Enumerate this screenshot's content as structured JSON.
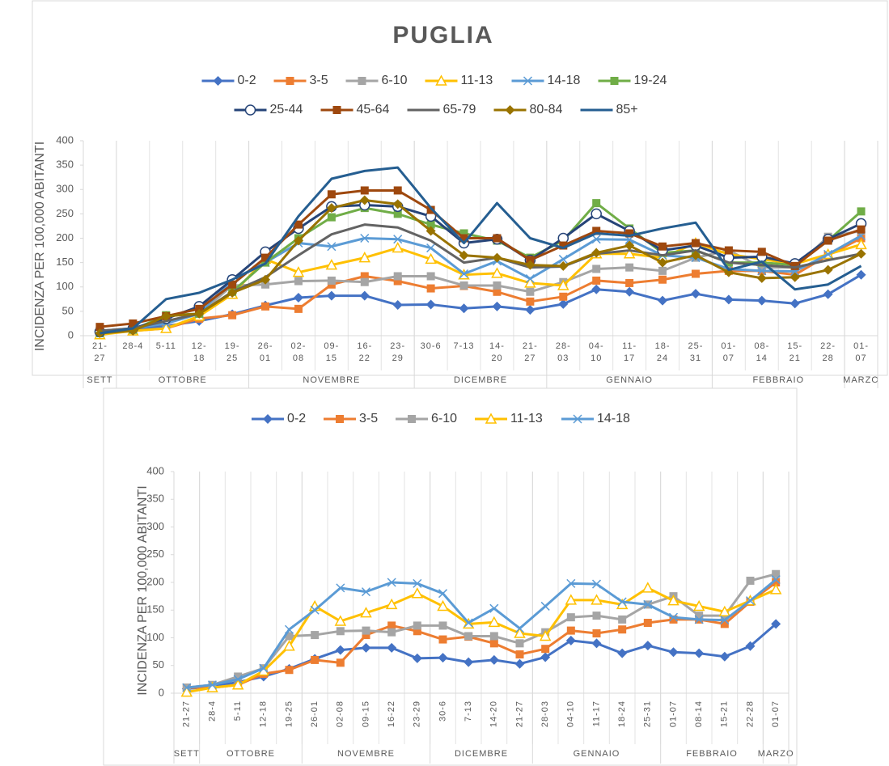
{
  "chart_data": [
    {
      "type": "line",
      "title": "PUGLIA",
      "y_label": "INCIDENZA PER 100,000 ABITANTI",
      "categories": [
        "21-27",
        "28-4",
        "5-11",
        "12-18",
        "19-25",
        "26-01",
        "02-08",
        "09-15",
        "16-22",
        "23-29",
        "30-6",
        "7-13",
        "14-20",
        "21-27",
        "28-03",
        "04-10",
        "11-17",
        "18-24",
        "25-31",
        "01-07",
        "08-14",
        "15-21",
        "22-28",
        "01-07"
      ],
      "groups": [
        {
          "label": "SETT",
          "count": 1
        },
        {
          "label": "OTTOBRE",
          "count": 4
        },
        {
          "label": "NOVEMBRE",
          "count": 5
        },
        {
          "label": "DICEMBRE",
          "count": 4
        },
        {
          "label": "GENNAIO",
          "count": 5
        },
        {
          "label": "FEBBRAIO",
          "count": 4
        },
        {
          "label": "MARZO",
          "count": 1
        }
      ],
      "ylim": [
        0,
        400
      ],
      "yticks": [
        0,
        50,
        100,
        150,
        200,
        250,
        300,
        350,
        400
      ],
      "series": [
        {
          "name": "0-2",
          "color": "#4472c4",
          "marker": "diamond",
          "values": [
            8,
            12,
            20,
            30,
            44,
            62,
            78,
            82,
            82,
            63,
            64,
            56,
            60,
            53,
            65,
            95,
            90,
            72,
            86,
            74,
            72,
            66,
            85,
            125
          ]
        },
        {
          "name": "3-5",
          "color": "#ed7d31",
          "marker": "square",
          "values": [
            10,
            10,
            15,
            35,
            42,
            60,
            55,
            105,
            122,
            112,
            97,
            102,
            90,
            70,
            80,
            113,
            108,
            115,
            127,
            133,
            133,
            125,
            165,
            200
          ]
        },
        {
          "name": "6-10",
          "color": "#a5a5a5",
          "marker": "square",
          "values": [
            10,
            15,
            30,
            45,
            103,
            105,
            112,
            113,
            110,
            122,
            122,
            103,
            103,
            90,
            110,
            137,
            140,
            133,
            160,
            175,
            140,
            140,
            203,
            215
          ]
        },
        {
          "name": "11-13",
          "color": "#ffc000",
          "marker": "triangle",
          "values": [
            2,
            10,
            15,
            40,
            85,
            157,
            130,
            145,
            160,
            180,
            157,
            125,
            128,
            108,
            103,
            168,
            168,
            160,
            190,
            167,
            157,
            147,
            167,
            187
          ]
        },
        {
          "name": "14-18",
          "color": "#5b9bd5",
          "marker": "x",
          "values": [
            10,
            15,
            25,
            45,
            115,
            150,
            190,
            183,
            200,
            198,
            180,
            127,
            153,
            117,
            157,
            198,
            197,
            165,
            160,
            137,
            133,
            132,
            167,
            205
          ]
        },
        {
          "name": "19-24",
          "color": "#70ad47",
          "marker": "square",
          "values": [
            5,
            12,
            42,
            45,
            90,
            150,
            200,
            243,
            262,
            250,
            228,
            210,
            195,
            160,
            195,
            272,
            220,
            170,
            175,
            150,
            150,
            145,
            195,
            255
          ]
        },
        {
          "name": "25-44",
          "color": "#264478",
          "marker": "circle",
          "values": [
            8,
            15,
            35,
            60,
            115,
            172,
            220,
            265,
            268,
            265,
            245,
            190,
            198,
            155,
            200,
            250,
            215,
            175,
            185,
            160,
            162,
            148,
            198,
            230
          ]
        },
        {
          "name": "45-64",
          "color": "#9e480e",
          "marker": "square",
          "values": [
            18,
            25,
            40,
            55,
            105,
            160,
            228,
            290,
            298,
            298,
            258,
            200,
            200,
            155,
            185,
            215,
            210,
            183,
            190,
            175,
            172,
            143,
            195,
            218
          ]
        },
        {
          "name": "65-79",
          "color": "#636363",
          "marker": "none",
          "values": [
            10,
            15,
            30,
            45,
            90,
            120,
            165,
            208,
            228,
            222,
            195,
            150,
            160,
            140,
            142,
            168,
            175,
            165,
            175,
            150,
            145,
            140,
            155,
            168
          ]
        },
        {
          "name": "80-84",
          "color": "#997300",
          "marker": "diamond",
          "values": [
            5,
            10,
            40,
            45,
            88,
            115,
            195,
            262,
            278,
            270,
            215,
            165,
            160,
            145,
            143,
            170,
            185,
            150,
            165,
            130,
            118,
            120,
            135,
            168
          ]
        },
        {
          "name": "85+",
          "color": "#255e91",
          "marker": "none",
          "values": [
            5,
            15,
            75,
            88,
            115,
            148,
            245,
            322,
            338,
            345,
            262,
            190,
            272,
            200,
            180,
            210,
            205,
            220,
            232,
            135,
            152,
            95,
            105,
            143
          ]
        }
      ]
    },
    {
      "type": "line",
      "y_label": "INCIDENZA PER 100,000 ABITANTI",
      "categories": [
        "21-27",
        "28-4",
        "5-11",
        "12-18",
        "19-25",
        "26-01",
        "02-08",
        "09-15",
        "16-22",
        "23-29",
        "30-6",
        "7-13",
        "14-20",
        "21-27",
        "28-03",
        "04-10",
        "11-17",
        "18-24",
        "25-31",
        "01-07",
        "08-14",
        "15-21",
        "22-28",
        "01-07"
      ],
      "groups": [
        {
          "label": "SETT",
          "count": 1
        },
        {
          "label": "OTTOBRE",
          "count": 4
        },
        {
          "label": "NOVEMBRE",
          "count": 5
        },
        {
          "label": "DICEMBRE",
          "count": 4
        },
        {
          "label": "GENNAIO",
          "count": 5
        },
        {
          "label": "FEBBRAIO",
          "count": 4
        },
        {
          "label": "MARZO",
          "count": 1
        }
      ],
      "ylim": [
        0,
        400
      ],
      "yticks": [
        0,
        50,
        100,
        150,
        200,
        250,
        300,
        350,
        400
      ],
      "series": [
        {
          "name": "0-2",
          "color": "#4472c4",
          "marker": "diamond",
          "values": [
            8,
            12,
            20,
            30,
            44,
            62,
            78,
            82,
            82,
            63,
            64,
            56,
            60,
            53,
            65,
            95,
            90,
            72,
            86,
            74,
            72,
            66,
            85,
            125
          ]
        },
        {
          "name": "3-5",
          "color": "#ed7d31",
          "marker": "square",
          "values": [
            10,
            10,
            15,
            35,
            42,
            60,
            55,
            105,
            122,
            112,
            97,
            102,
            90,
            70,
            80,
            113,
            108,
            115,
            127,
            133,
            133,
            125,
            165,
            200
          ]
        },
        {
          "name": "6-10",
          "color": "#a5a5a5",
          "marker": "square",
          "values": [
            10,
            15,
            30,
            45,
            103,
            105,
            112,
            113,
            110,
            122,
            122,
            103,
            103,
            90,
            110,
            137,
            140,
            133,
            160,
            175,
            140,
            140,
            203,
            215
          ]
        },
        {
          "name": "11-13",
          "color": "#ffc000",
          "marker": "triangle",
          "values": [
            2,
            10,
            15,
            40,
            85,
            157,
            130,
            145,
            160,
            180,
            157,
            125,
            128,
            108,
            103,
            168,
            168,
            160,
            190,
            167,
            157,
            147,
            167,
            187
          ]
        },
        {
          "name": "14-18",
          "color": "#5b9bd5",
          "marker": "x",
          "values": [
            10,
            15,
            25,
            45,
            115,
            150,
            190,
            183,
            200,
            198,
            180,
            127,
            153,
            117,
            157,
            198,
            197,
            165,
            160,
            137,
            133,
            132,
            167,
            205
          ]
        }
      ]
    }
  ]
}
